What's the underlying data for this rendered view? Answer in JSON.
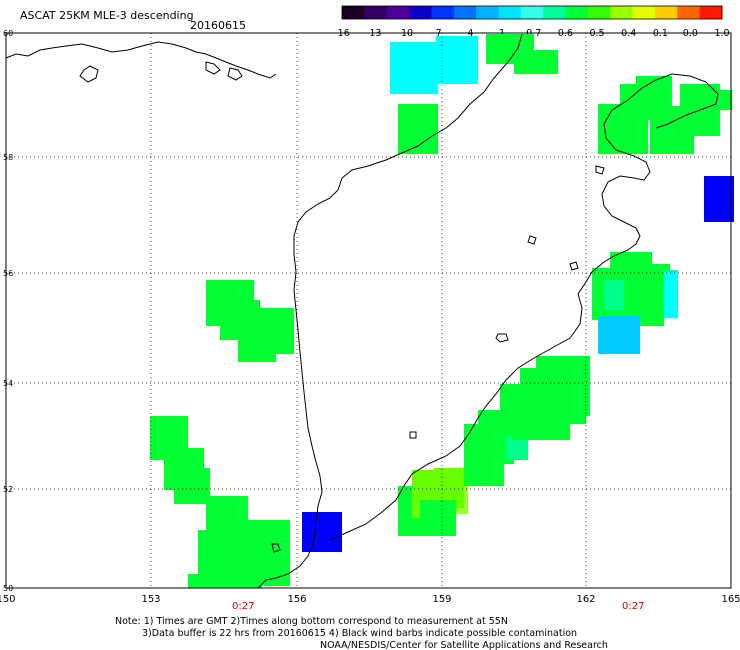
{
  "header": {
    "product_label": "ASCAT 25KM MLE-3 descending",
    "date_label": "20160615"
  },
  "colorbar": {
    "colors": [
      "#1a0024",
      "#330066",
      "#4d0099",
      "#0d00cc",
      "#0033ff",
      "#0073ff",
      "#00b3ff",
      "#00e6ff",
      "#33ffe6",
      "#00ff99",
      "#00ff33",
      "#33ff00",
      "#99ff00",
      "#e6ff00",
      "#ffcc00",
      "#ff6600",
      "#ff1a00"
    ],
    "tick_labels": [
      "-16",
      "-13",
      "-10",
      "-7",
      "-4",
      "-1",
      "-0.7",
      "-0.6",
      "-0.5",
      "-0.4",
      "-0.1",
      "0.0",
      "1.0"
    ]
  },
  "axes": {
    "x_ticks": [
      "150",
      "153",
      "156",
      "159",
      "162",
      "165"
    ],
    "y_ticks": [
      "60",
      "58",
      "56",
      "54",
      "52",
      "50"
    ],
    "lon_range": [
      150,
      165
    ],
    "lat_range": [
      50,
      60
    ],
    "grid": "dotted"
  },
  "time_marks": [
    "0:27",
    "0:27"
  ],
  "map_cells": {
    "colors": {
      "green": "#00ff33",
      "green_mid": "#19ff22",
      "yellowgreen": "#66ff00",
      "lime": "#99ff33",
      "aqua_green": "#00ff88",
      "cyan": "#00ffff",
      "sky": "#00ccff",
      "blue": "#0000ff"
    }
  },
  "notes": {
    "line1": "Note: 1) Times are GMT 2)Times along bottom correspond to measurement at 55N",
    "line2": "3)Data buffer is 22 hrs from 20160615 4) Black wind barbs indicate possible contamination",
    "line3": "NOAA/NESDIS/Center for Satellite Applications and Research"
  }
}
